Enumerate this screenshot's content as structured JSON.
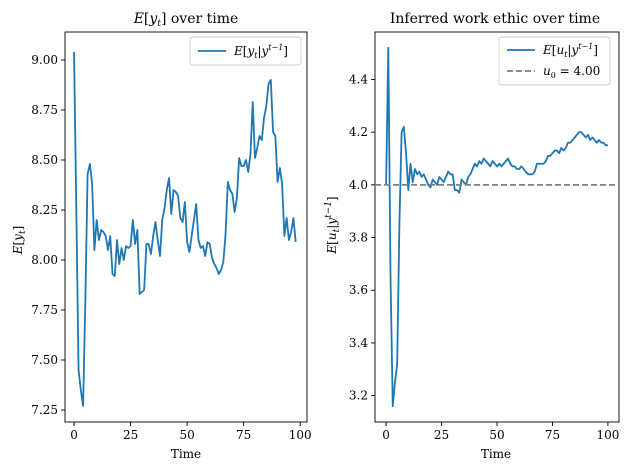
{
  "chart_data": [
    {
      "type": "line",
      "title": "E[y_t] over time",
      "title_math": "E[y",
      "title_sub": "t",
      "title_rest": "] over time",
      "xlabel": "Time",
      "ylabel": "E[y_t]",
      "xlim": [
        -4,
        103
      ],
      "ylim": [
        7.19,
        9.14
      ],
      "xticks": [
        0,
        25,
        50,
        75,
        100
      ],
      "yticks": [
        7.25,
        7.5,
        7.75,
        8.0,
        8.25,
        8.5,
        8.75,
        9.0
      ],
      "ytick_labels": [
        "7.25",
        "7.50",
        "7.75",
        "8.00",
        "8.25",
        "8.50",
        "8.75",
        "9.00"
      ],
      "grid": false,
      "legend_placement": "top-right",
      "series": [
        {
          "name": "E[y_t | y^{t-1}]",
          "color": "#1f77b4",
          "x": [
            0,
            1,
            2,
            3,
            4,
            5,
            6,
            7,
            8,
            9,
            10,
            11,
            12,
            13,
            14,
            15,
            16,
            17,
            18,
            19,
            20,
            21,
            22,
            23,
            24,
            25,
            26,
            27,
            28,
            29,
            30,
            31,
            32,
            33,
            34,
            35,
            36,
            37,
            38,
            39,
            40,
            41,
            42,
            43,
            44,
            45,
            46,
            47,
            48,
            49,
            50,
            51,
            52,
            53,
            54,
            55,
            56,
            57,
            58,
            59,
            60,
            61,
            62,
            63,
            64,
            65,
            66,
            67,
            68,
            69,
            70,
            71,
            72,
            73,
            74,
            75,
            76,
            77,
            78,
            79,
            80,
            81,
            82,
            83,
            84,
            85,
            86,
            87,
            88,
            89,
            90,
            91,
            92,
            93,
            94,
            95,
            96,
            97,
            98
          ],
          "y": [
            9.04,
            8.25,
            7.45,
            7.35,
            7.27,
            7.8,
            8.43,
            8.48,
            8.38,
            8.05,
            8.2,
            8.1,
            8.15,
            8.14,
            8.12,
            8.05,
            8.12,
            7.93,
            7.92,
            8.1,
            7.98,
            8.06,
            8.0,
            8.07,
            8.06,
            8.07,
            8.2,
            8.08,
            8.15,
            7.83,
            7.84,
            7.85,
            8.08,
            8.08,
            8.03,
            8.12,
            8.19,
            8.1,
            8.02,
            8.2,
            8.26,
            8.35,
            8.41,
            8.23,
            8.35,
            8.34,
            8.32,
            8.21,
            8.19,
            8.29,
            8.09,
            8.04,
            8.12,
            8.2,
            8.28,
            8.1,
            8.06,
            8.07,
            8.02,
            8.09,
            8.08,
            8.01,
            7.98,
            7.96,
            7.93,
            7.95,
            7.99,
            8.13,
            8.39,
            8.35,
            8.33,
            8.24,
            8.31,
            8.51,
            8.47,
            8.47,
            8.5,
            8.44,
            8.53,
            8.79,
            8.51,
            8.56,
            8.62,
            8.6,
            8.71,
            8.77,
            8.88,
            8.9,
            8.64,
            8.62,
            8.39,
            8.46,
            8.38,
            8.12,
            8.21,
            8.1,
            8.14,
            8.21,
            8.09
          ]
        }
      ]
    },
    {
      "type": "line",
      "title": "Inferred work ethic over time",
      "xlabel": "Time",
      "ylabel": "E[u_t | y^{t-1}]",
      "xlim": [
        -5,
        105
      ],
      "ylim": [
        3.1,
        4.58
      ],
      "xticks": [
        0,
        25,
        50,
        75,
        100
      ],
      "yticks": [
        3.2,
        3.4,
        3.6,
        3.8,
        4.0,
        4.2,
        4.4
      ],
      "ytick_labels": [
        "3.2",
        "3.4",
        "3.6",
        "3.8",
        "4.0",
        "4.2",
        "4.4"
      ],
      "grid": false,
      "legend_placement": "top-right",
      "series": [
        {
          "name": "E[u_t | y^{t-1}]",
          "color": "#1f77b4",
          "x": [
            0,
            1,
            2,
            3,
            4,
            5,
            6,
            7,
            8,
            9,
            10,
            11,
            12,
            13,
            14,
            15,
            16,
            17,
            18,
            19,
            20,
            21,
            22,
            23,
            24,
            25,
            26,
            27,
            28,
            29,
            30,
            31,
            32,
            33,
            34,
            35,
            36,
            37,
            38,
            39,
            40,
            41,
            42,
            43,
            44,
            45,
            46,
            47,
            48,
            49,
            50,
            51,
            52,
            53,
            54,
            55,
            56,
            57,
            58,
            59,
            60,
            61,
            62,
            63,
            64,
            65,
            66,
            67,
            68,
            69,
            70,
            71,
            72,
            73,
            74,
            75,
            76,
            77,
            78,
            79,
            80,
            81,
            82,
            83,
            84,
            85,
            86,
            87,
            88,
            89,
            90,
            91,
            92,
            93,
            94,
            95,
            96,
            97,
            98,
            99,
            100
          ],
          "y": [
            4.0,
            4.52,
            3.65,
            3.16,
            3.25,
            3.32,
            3.85,
            4.2,
            4.22,
            4.12,
            3.98,
            4.08,
            4.01,
            4.06,
            4.04,
            4.05,
            4.03,
            4.04,
            4.02,
            4.0,
            3.99,
            4.02,
            4.01,
            4.0,
            4.03,
            4.02,
            4.01,
            4.03,
            4.05,
            4.04,
            4.04,
            3.98,
            3.98,
            3.97,
            4.02,
            4.01,
            4.0,
            4.03,
            4.04,
            4.06,
            4.08,
            4.07,
            4.09,
            4.08,
            4.1,
            4.09,
            4.08,
            4.07,
            4.09,
            4.08,
            4.07,
            4.08,
            4.07,
            4.08,
            4.09,
            4.1,
            4.08,
            4.07,
            4.07,
            4.06,
            4.06,
            4.07,
            4.06,
            4.05,
            4.04,
            4.04,
            4.04,
            4.05,
            4.08,
            4.08,
            4.08,
            4.08,
            4.09,
            4.11,
            4.11,
            4.12,
            4.13,
            4.13,
            4.12,
            4.14,
            4.13,
            4.14,
            4.16,
            4.16,
            4.17,
            4.18,
            4.19,
            4.2,
            4.2,
            4.19,
            4.18,
            4.19,
            4.17,
            4.18,
            4.17,
            4.16,
            4.17,
            4.16,
            4.16,
            4.15,
            4.15
          ]
        },
        {
          "name": "u_0 = 4.00",
          "color": "#808080",
          "style": "dashed",
          "y_const": 4.0
        }
      ]
    }
  ]
}
